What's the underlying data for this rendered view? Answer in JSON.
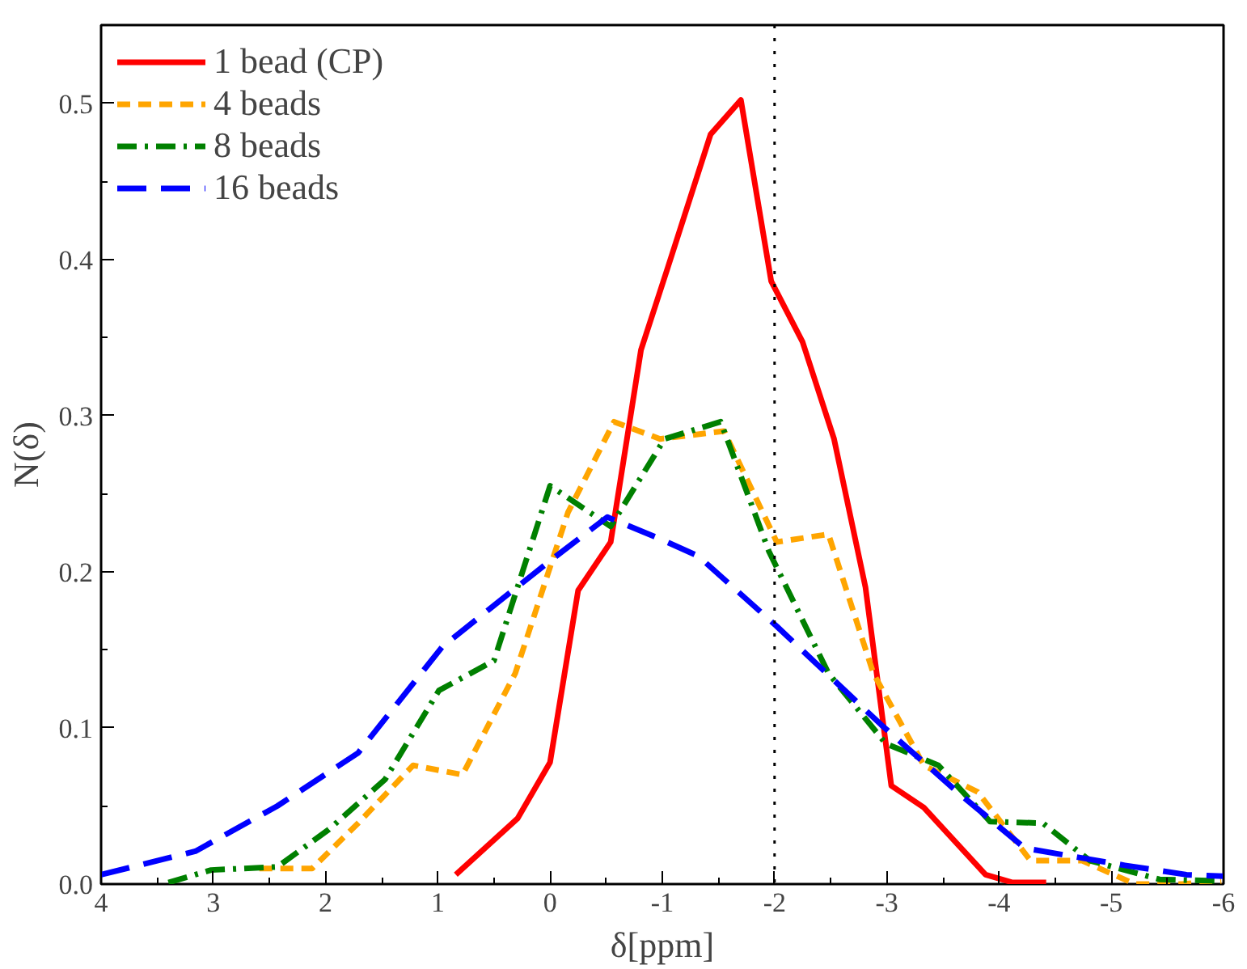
{
  "chart_data": {
    "type": "line",
    "xlabel": "δ[ppm]",
    "ylabel": "N(δ)",
    "xlim": [
      4,
      -6
    ],
    "ylim": [
      0,
      0.55
    ],
    "xticks": [
      4,
      3,
      2,
      1,
      0,
      -1,
      -2,
      -3,
      -4,
      -5,
      -6
    ],
    "yticks": [
      {
        "value": 0,
        "label": "0.0"
      },
      0.1,
      0.2,
      0.3,
      0.4,
      0.5
    ],
    "grid": false,
    "legend": "top left",
    "marker": "none",
    "ref_lines": [
      {
        "axis": "x",
        "value": -2,
        "line_style": "dotted",
        "color": "#000000"
      }
    ],
    "series": [
      {
        "name": "1 bead (CP)",
        "color": "#ff0000",
        "line_style": "solid",
        "x": [
          0.84,
          0.29,
          0.0,
          -0.25,
          -0.54,
          -0.81,
          -1.05,
          -1.43,
          -1.7,
          -1.97,
          -2.25,
          -2.53,
          -2.81,
          -3.04,
          -3.33,
          -3.88,
          -4.12,
          -4.42
        ],
        "values": [
          0.006,
          0.042,
          0.078,
          0.188,
          0.219,
          0.342,
          0.395,
          0.48,
          0.502,
          0.386,
          0.347,
          0.285,
          0.19,
          0.063,
          0.049,
          0.006,
          0.001,
          0.001
        ]
      },
      {
        "name": "4 beads",
        "color": "#ffa500",
        "line_style": "dashed",
        "x": [
          2.59,
          2.12,
          1.71,
          1.22,
          0.78,
          0.31,
          -0.16,
          -0.57,
          -0.98,
          -1.55,
          -2.02,
          -2.48,
          -2.88,
          -3.33,
          -3.81,
          -4.28,
          -4.74,
          -5.21,
          -5.63,
          -5.98
        ],
        "values": [
          0.01,
          0.01,
          0.039,
          0.076,
          0.07,
          0.135,
          0.238,
          0.296,
          0.285,
          0.29,
          0.219,
          0.224,
          0.135,
          0.076,
          0.059,
          0.015,
          0.015,
          0.0,
          0.0,
          0.002
        ]
      },
      {
        "name": "8 beads",
        "color": "#008000",
        "line_style": "dashdot",
        "x": [
          3.4,
          3.02,
          2.43,
          1.97,
          1.47,
          0.99,
          0.5,
          0.0,
          -0.54,
          -1.02,
          -1.52,
          -1.95,
          -2.48,
          -2.99,
          -3.46,
          -3.92,
          -4.39,
          -4.81,
          -5.43,
          -5.98
        ],
        "values": [
          0.001,
          0.009,
          0.011,
          0.035,
          0.067,
          0.124,
          0.143,
          0.255,
          0.229,
          0.285,
          0.296,
          0.213,
          0.135,
          0.09,
          0.076,
          0.04,
          0.039,
          0.015,
          0.003,
          0.002
        ]
      },
      {
        "name": "16 beads",
        "color": "#0000ff",
        "line_style": "longdash",
        "x": [
          4.0,
          3.16,
          2.43,
          1.71,
          0.96,
          0.0,
          -0.51,
          -0.98,
          -1.32,
          -2.02,
          -2.95,
          -3.66,
          -4.23,
          -5.12,
          -5.67,
          -6.0
        ],
        "values": [
          0.006,
          0.021,
          0.05,
          0.084,
          0.152,
          0.207,
          0.235,
          0.221,
          0.21,
          0.165,
          0.102,
          0.057,
          0.023,
          0.012,
          0.006,
          0.005
        ]
      }
    ]
  }
}
